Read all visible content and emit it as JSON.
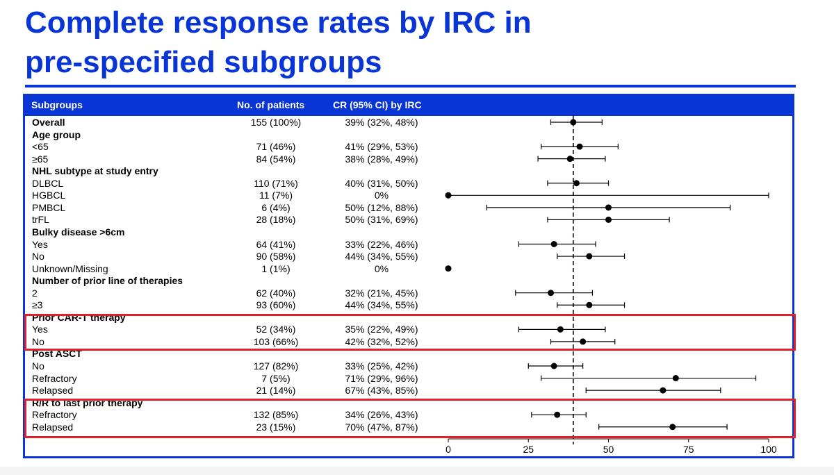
{
  "title_line1": "Complete response rates by IRC in",
  "title_line2": "pre-specified subgroups",
  "header": {
    "subgroups": "Subgroups",
    "patients": "No. of patients",
    "cr": "CR (95% CI) by IRC"
  },
  "colors": {
    "brand_blue": "#0a35d6",
    "highlight_red": "#e0202a"
  },
  "chart_data": {
    "type": "forest",
    "reference_line": 39,
    "xlim": [
      0,
      100
    ],
    "xticks": [
      "0",
      "25",
      "50",
      "75",
      "100"
    ],
    "reference_style": "dashed",
    "rows": [
      {
        "label": "Overall",
        "bold": true,
        "n": "155 (100%)",
        "cr": "39% (32%, 48%)",
        "est": 39,
        "lo": 32,
        "hi": 48
      },
      {
        "label": "Age group",
        "bold": true,
        "heading": true
      },
      {
        "label": "<65",
        "n": "71 (46%)",
        "cr": "41% (29%, 53%)",
        "est": 41,
        "lo": 29,
        "hi": 53
      },
      {
        "label": "≥65",
        "n": "84 (54%)",
        "cr": "38% (28%, 49%)",
        "est": 38,
        "lo": 28,
        "hi": 49
      },
      {
        "label": "NHL subtype at study entry",
        "bold": true,
        "heading": true
      },
      {
        "label": "DLBCL",
        "n": "110 (71%)",
        "cr": "40% (31%, 50%)",
        "est": 40,
        "lo": 31,
        "hi": 50
      },
      {
        "label": "HGBCL",
        "n": "11 (7%)",
        "cr": "0%",
        "est": 0,
        "lo": 0,
        "hi": 100
      },
      {
        "label": "PMBCL",
        "n": "6 (4%)",
        "cr": "50% (12%, 88%)",
        "est": 50,
        "lo": 12,
        "hi": 88
      },
      {
        "label": "trFL",
        "n": "28 (18%)",
        "cr": "50% (31%, 69%)",
        "est": 50,
        "lo": 31,
        "hi": 69
      },
      {
        "label": "Bulky disease >6cm",
        "bold": true,
        "heading": true
      },
      {
        "label": "Yes",
        "n": "64 (41%)",
        "cr": "33% (22%, 46%)",
        "est": 33,
        "lo": 22,
        "hi": 46
      },
      {
        "label": "No",
        "n": "90 (58%)",
        "cr": "44% (34%, 55%)",
        "est": 44,
        "lo": 34,
        "hi": 55
      },
      {
        "label": "Unknown/Missing",
        "n": "1 (1%)",
        "cr": "0%",
        "est": 0,
        "lo": null,
        "hi": null
      },
      {
        "label": "Number of prior line of therapies",
        "bold": true,
        "heading": true
      },
      {
        "label": "2",
        "n": "62 (40%)",
        "cr": "32% (21%, 45%)",
        "est": 32,
        "lo": 21,
        "hi": 45
      },
      {
        "label": "≥3",
        "n": "93 (60%)",
        "cr": "44% (34%, 55%)",
        "est": 44,
        "lo": 34,
        "hi": 55
      },
      {
        "label": "Prior CAR-T therapy",
        "bold": true,
        "heading": true
      },
      {
        "label": "Yes",
        "n": "52 (34%)",
        "cr": "35% (22%, 49%)",
        "est": 35,
        "lo": 22,
        "hi": 49
      },
      {
        "label": "No",
        "n": "103 (66%)",
        "cr": "42% (32%, 52%)",
        "est": 42,
        "lo": 32,
        "hi": 52
      },
      {
        "label": "Post ASCT",
        "bold": true,
        "heading": true
      },
      {
        "label": "No",
        "n": "127 (82%)",
        "cr": "33% (25%, 42%)",
        "est": 33,
        "lo": 25,
        "hi": 42
      },
      {
        "label": "Refractory",
        "n": "7 (5%)",
        "cr": "71% (29%, 96%)",
        "est": 71,
        "lo": 29,
        "hi": 96
      },
      {
        "label": "Relapsed",
        "n": "21 (14%)",
        "cr": "67% (43%, 85%)",
        "est": 67,
        "lo": 43,
        "hi": 85
      },
      {
        "label": "R/R to last prior therapy",
        "bold": true,
        "heading": true
      },
      {
        "label": "Refractory",
        "n": "132 (85%)",
        "cr": "34% (26%, 43%)",
        "est": 34,
        "lo": 26,
        "hi": 43
      },
      {
        "label": "Relapsed",
        "n": "23 (15%)",
        "cr": "70% (47%, 87%)",
        "est": 70,
        "lo": 47,
        "hi": 87
      }
    ]
  }
}
